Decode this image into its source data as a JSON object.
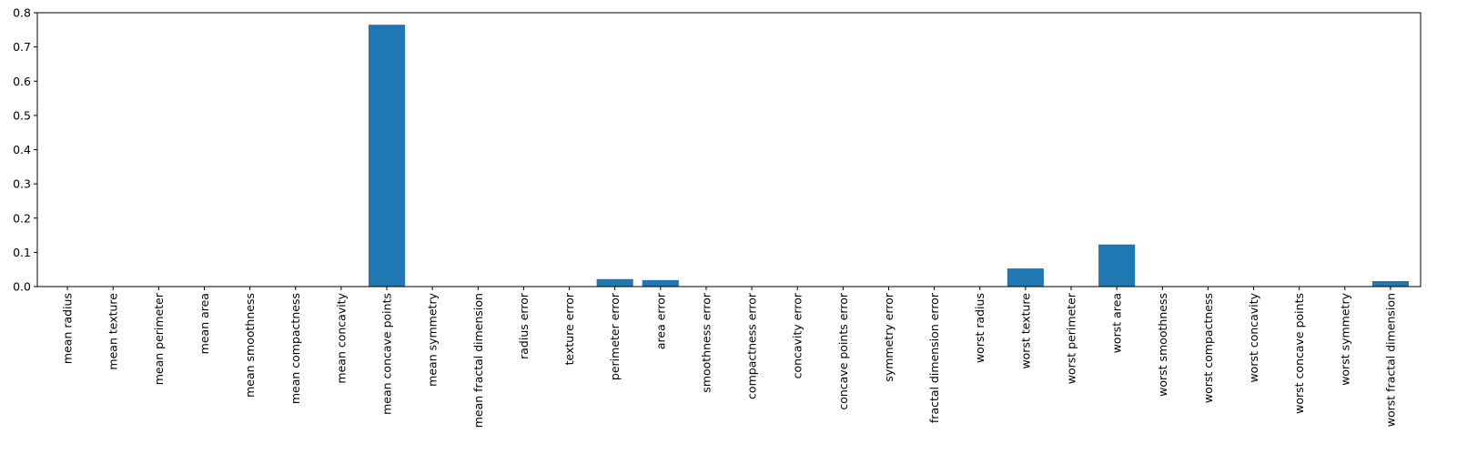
{
  "chart_data": {
    "type": "bar",
    "title": "",
    "xlabel": "",
    "ylabel": "",
    "ylim": [
      0,
      0.8
    ],
    "yticks": [
      0.0,
      0.1,
      0.2,
      0.3,
      0.4,
      0.5,
      0.6,
      0.7,
      0.8
    ],
    "ytick_labels": [
      "0.0",
      "0.1",
      "0.2",
      "0.3",
      "0.4",
      "0.5",
      "0.6",
      "0.7",
      "0.8"
    ],
    "grid": false,
    "bar_color": "#1f77b4",
    "categories": [
      "mean radius",
      "mean texture",
      "mean perimeter",
      "mean area",
      "mean smoothness",
      "mean compactness",
      "mean concavity",
      "mean concave points",
      "mean symmetry",
      "mean fractal dimension",
      "radius error",
      "texture error",
      "perimeter error",
      "area error",
      "smoothness error",
      "compactness error",
      "concavity error",
      "concave points error",
      "symmetry error",
      "fractal dimension error",
      "worst radius",
      "worst texture",
      "worst perimeter",
      "worst area",
      "worst smoothness",
      "worst compactness",
      "worst concavity",
      "worst concave points",
      "worst symmetry",
      "worst fractal dimension"
    ],
    "values": [
      0,
      0,
      0,
      0,
      0,
      0,
      0,
      0.765,
      0,
      0,
      0,
      0,
      0.022,
      0.019,
      0,
      0,
      0,
      0,
      0,
      0,
      0,
      0.053,
      0,
      0.123,
      0,
      0,
      0,
      0,
      0,
      0.016
    ]
  }
}
